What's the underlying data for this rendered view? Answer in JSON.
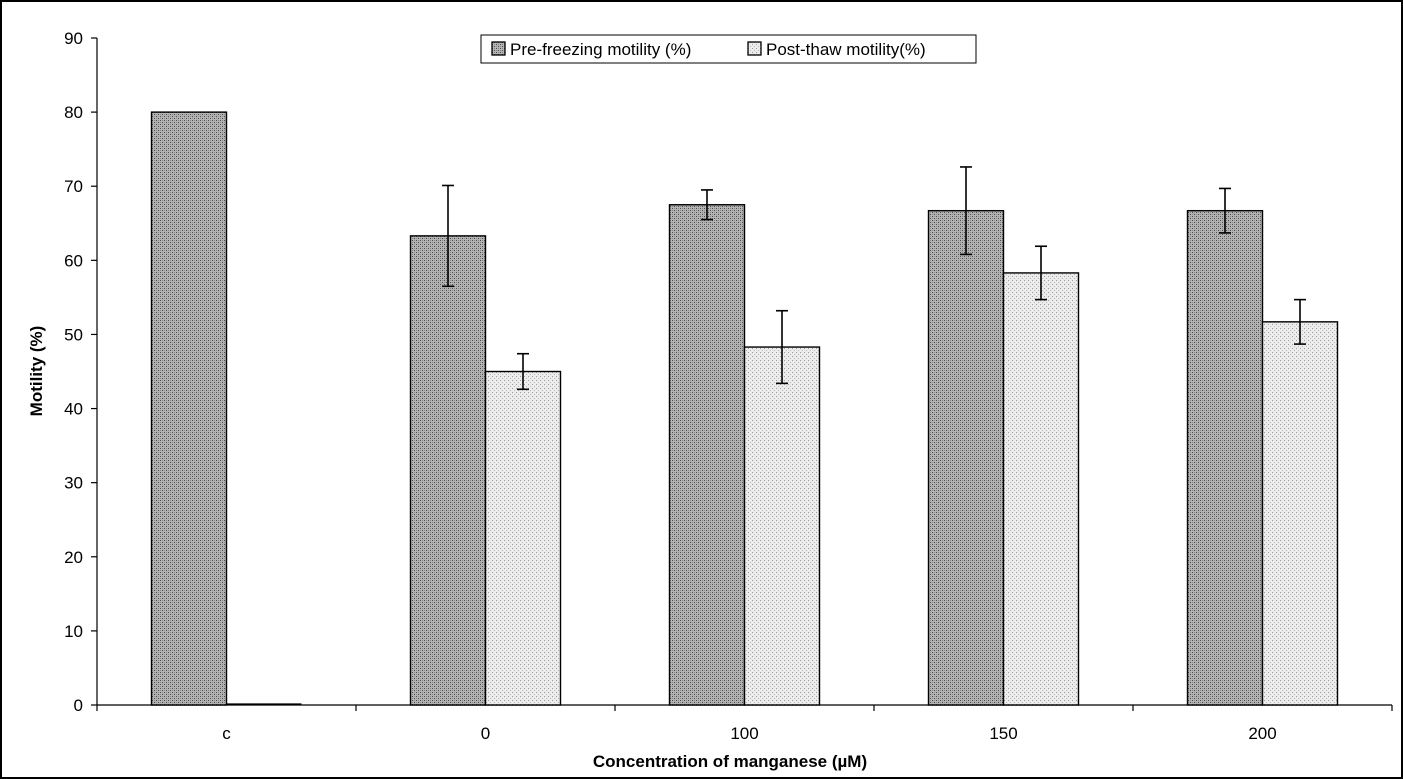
{
  "chart_data": {
    "type": "bar",
    "title": "",
    "xlabel": "Concentration of manganese (µM)",
    "ylabel": "Motility (%)",
    "ylim": [
      0,
      90
    ],
    "yticks": [
      0,
      10,
      20,
      30,
      40,
      50,
      60,
      70,
      80,
      90
    ],
    "grid": false,
    "legend_position": "top-center",
    "categories": [
      "c",
      "0",
      "100",
      "150",
      "200"
    ],
    "series": [
      {
        "name": "Pre-freezing motility (%)",
        "values": [
          80,
          63.3,
          67.5,
          66.7,
          66.7
        ],
        "error": [
          null,
          6.8,
          2.0,
          5.9,
          3.0
        ],
        "pattern": "dense-stipple",
        "color": "#9a9a9a"
      },
      {
        "name": "Post-thaw motility(%)",
        "values": [
          0,
          45,
          48.3,
          58.3,
          51.7
        ],
        "error": [
          null,
          2.4,
          4.9,
          3.6,
          3.0
        ],
        "pattern": "light-stipple",
        "color": "#dcdcdc"
      }
    ]
  }
}
